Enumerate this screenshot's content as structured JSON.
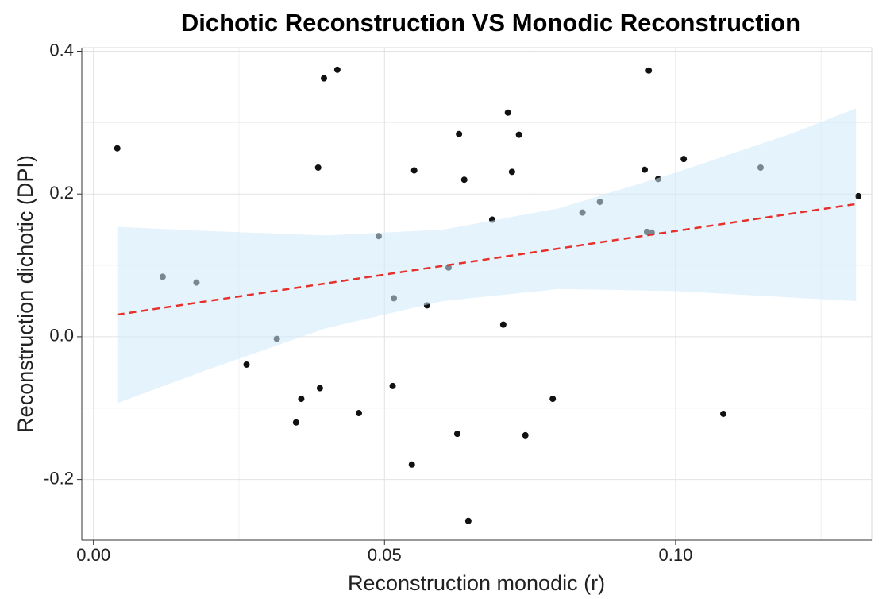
{
  "chart_data": {
    "type": "scatter",
    "title": "Dichotic Reconstruction VS Monodic Reconstruction",
    "x_label": "Reconstruction monodic (r)",
    "y_label": "Reconstruction dichotic (DPI)",
    "x": [
      0.0041,
      0.0119,
      0.0177,
      0.0263,
      0.0315,
      0.0348,
      0.0357,
      0.0386,
      0.0389,
      0.0396,
      0.0419,
      0.0456,
      0.049,
      0.0514,
      0.0516,
      0.0547,
      0.0551,
      0.0573,
      0.061,
      0.0625,
      0.0628,
      0.0637,
      0.0644,
      0.0685,
      0.0704,
      0.0712,
      0.0719,
      0.0731,
      0.0742,
      0.0789,
      0.084,
      0.087,
      0.0947,
      0.0951,
      0.0954,
      0.0959,
      0.097,
      0.1014,
      0.1082,
      0.1146,
      0.1314
    ],
    "values": [
      0.264,
      0.084,
      0.076,
      -0.039,
      -0.003,
      -0.12,
      -0.087,
      0.237,
      -0.072,
      0.362,
      0.374,
      -0.107,
      0.141,
      -0.069,
      0.054,
      -0.179,
      0.233,
      0.044,
      0.097,
      -0.136,
      0.284,
      0.22,
      -0.258,
      0.164,
      0.017,
      0.314,
      0.231,
      0.283,
      -0.138,
      -0.087,
      0.174,
      0.189,
      0.234,
      0.147,
      0.373,
      0.146,
      0.221,
      0.249,
      -0.108,
      0.237,
      0.197
    ],
    "color": "#111111",
    "fit": {
      "x": [
        0.0041,
        0.131
      ],
      "y": [
        0.031,
        0.186
      ],
      "color": "#e8302a"
    },
    "band": {
      "x": [
        0.0041,
        0.02,
        0.04,
        0.06,
        0.08,
        0.1,
        0.12,
        0.131
      ],
      "upper": [
        0.154,
        0.148,
        0.142,
        0.15,
        0.18,
        0.23,
        0.285,
        0.32
      ],
      "lower": [
        -0.093,
        -0.045,
        0.012,
        0.05,
        0.067,
        0.064,
        0.055,
        0.05
      ],
      "color": "#cfe9fb"
    },
    "xlim": [
      -0.002,
      0.1337
    ],
    "ylim": [
      -0.285,
      0.405
    ],
    "xticks": [
      {
        "value": 0,
        "label": "0.00"
      },
      0.05,
      {
        "value": 0.1,
        "label": "0.10"
      }
    ],
    "yticks": [
      -0.2,
      {
        "value": 0,
        "label": "0.0"
      },
      0.2,
      0.4
    ],
    "x_minor_ticks": [
      0.025,
      0.075,
      0.125
    ],
    "y_minor_ticks": [
      -0.1,
      0.1,
      0.3
    ],
    "grid": true
  }
}
